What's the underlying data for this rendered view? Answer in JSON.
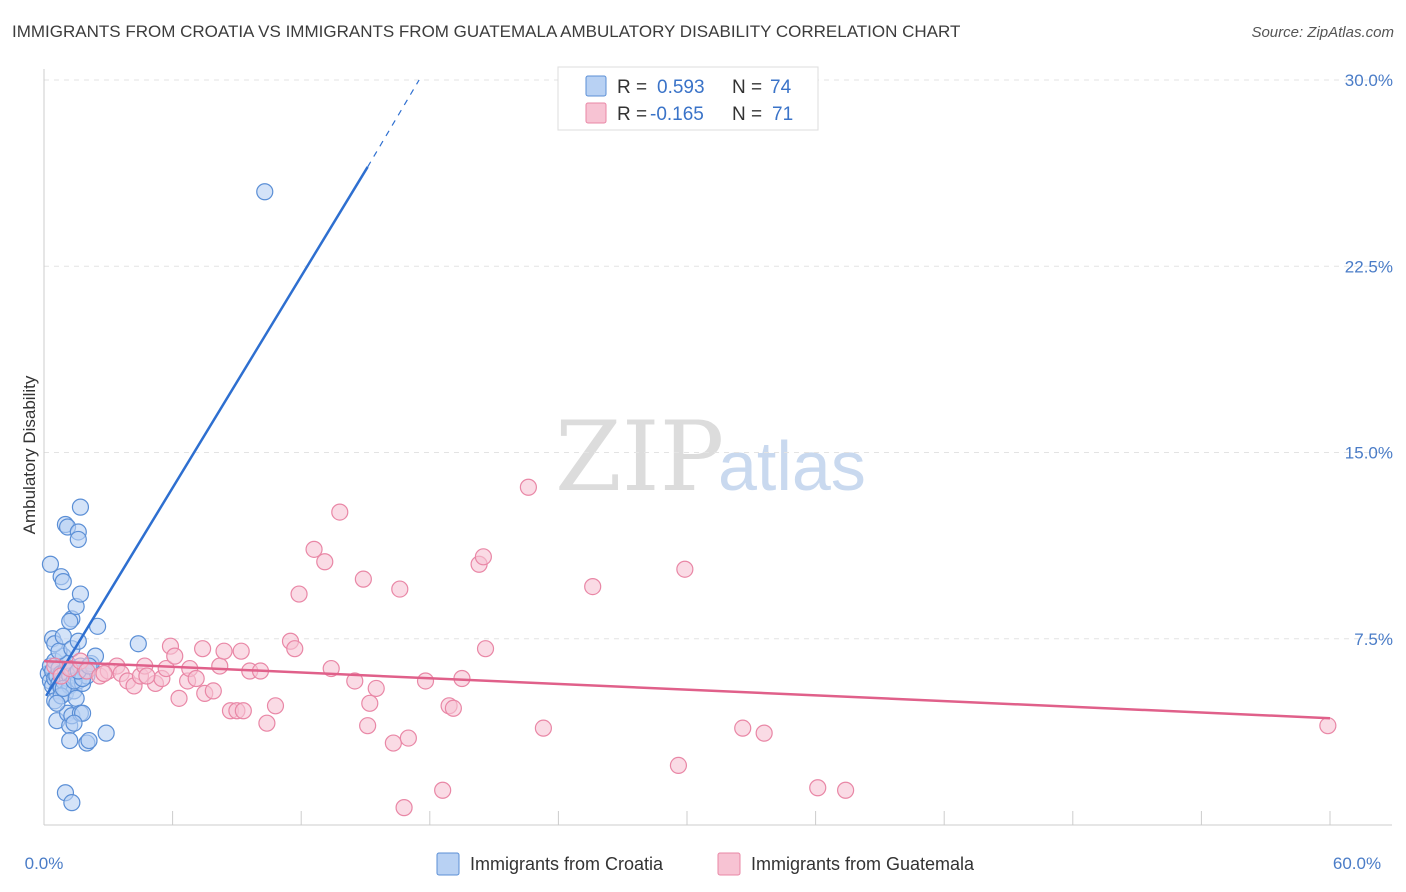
{
  "header": {
    "title": "IMMIGRANTS FROM CROATIA VS IMMIGRANTS FROM GUATEMALA AMBULATORY DISABILITY CORRELATION CHART",
    "source": "Source: ZipAtlas.com"
  },
  "watermark": {
    "zip": "ZIP",
    "atlas": "atlas"
  },
  "legend": {
    "rows": [
      {
        "r_label": "R =",
        "r_value": "0.593",
        "n_label": "N =",
        "n_value": "74"
      },
      {
        "r_label": "R =",
        "r_value": "-0.165",
        "n_label": "N =",
        "n_value": "71"
      }
    ]
  },
  "colors": {
    "croatia_fill": "#b8d1f3",
    "croatia_stroke": "#5b8fd6",
    "croatia_line": "#2e6fd0",
    "guatemala_fill": "#f7c3d3",
    "guatemala_stroke": "#e987a6",
    "guatemala_line": "#e0608a",
    "tick_text": "#4a7cc7"
  },
  "chart_data": {
    "type": "scatter",
    "title": "IMMIGRANTS FROM CROATIA VS IMMIGRANTS FROM GUATEMALA AMBULATORY DISABILITY CORRELATION CHART",
    "xlabel": "",
    "ylabel": "Ambulatory Disability",
    "xlim": [
      0,
      60
    ],
    "ylim": [
      0,
      30
    ],
    "x_tick_labels": [
      "0.0%",
      "60.0%"
    ],
    "y_ticks": [
      7.5,
      15.0,
      22.5,
      30.0
    ],
    "y_tick_labels": [
      "7.5%",
      "15.0%",
      "22.5%",
      "30.0%"
    ],
    "grid": "horizontal dashed",
    "legend_position": "top-center",
    "series": [
      {
        "name": "Immigrants from Croatia",
        "trend": {
          "x": [
            0.1,
            15.1
          ],
          "y": [
            5.2,
            26.5
          ],
          "dashed_to": [
            17.5,
            30.0
          ]
        },
        "points": [
          [
            0.2,
            6.1
          ],
          [
            0.3,
            5.8
          ],
          [
            0.3,
            6.4
          ],
          [
            0.4,
            5.6
          ],
          [
            0.4,
            6.2
          ],
          [
            0.5,
            5.9
          ],
          [
            0.5,
            6.6
          ],
          [
            0.6,
            5.4
          ],
          [
            0.6,
            6.0
          ],
          [
            0.7,
            6.3
          ],
          [
            0.7,
            5.7
          ],
          [
            0.8,
            6.1
          ],
          [
            0.8,
            5.5
          ],
          [
            0.9,
            6.8
          ],
          [
            0.9,
            5.8
          ],
          [
            1.0,
            6.2
          ],
          [
            1.0,
            5.3
          ],
          [
            1.1,
            6.5
          ],
          [
            1.1,
            5.9
          ],
          [
            1.2,
            6.0
          ],
          [
            1.2,
            5.6
          ],
          [
            1.3,
            6.3
          ],
          [
            1.4,
            5.4
          ],
          [
            1.5,
            6.1
          ],
          [
            1.6,
            5.8
          ],
          [
            1.7,
            6.4
          ],
          [
            1.8,
            5.7
          ],
          [
            1.9,
            6.2
          ],
          [
            2.0,
            6.0
          ],
          [
            2.2,
            6.5
          ],
          [
            0.4,
            7.5
          ],
          [
            0.5,
            7.3
          ],
          [
            0.7,
            7.0
          ],
          [
            0.9,
            7.6
          ],
          [
            1.3,
            7.1
          ],
          [
            1.6,
            7.4
          ],
          [
            2.4,
            6.8
          ],
          [
            0.3,
            10.5
          ],
          [
            0.8,
            10.0
          ],
          [
            0.9,
            9.8
          ],
          [
            1.0,
            12.1
          ],
          [
            1.1,
            12.0
          ],
          [
            1.3,
            8.3
          ],
          [
            1.2,
            8.2
          ],
          [
            1.5,
            8.8
          ],
          [
            1.7,
            9.3
          ],
          [
            1.6,
            11.8
          ],
          [
            1.6,
            11.5
          ],
          [
            1.7,
            12.8
          ],
          [
            2.5,
            8.0
          ],
          [
            0.5,
            5.0
          ],
          [
            0.6,
            4.2
          ],
          [
            0.8,
            5.2
          ],
          [
            1.1,
            4.5
          ],
          [
            1.2,
            4.0
          ],
          [
            1.3,
            4.4
          ],
          [
            1.5,
            5.1
          ],
          [
            1.7,
            4.5
          ],
          [
            1.8,
            4.5
          ],
          [
            1.2,
            3.4
          ],
          [
            2.0,
            3.3
          ],
          [
            2.1,
            3.4
          ],
          [
            2.9,
            3.7
          ],
          [
            0.9,
            5.5
          ],
          [
            1.4,
            5.8
          ],
          [
            1.8,
            5.9
          ],
          [
            1.0,
            1.3
          ],
          [
            1.3,
            0.9
          ],
          [
            4.4,
            7.3
          ],
          [
            10.3,
            25.5
          ],
          [
            0.6,
            4.9
          ],
          [
            1.6,
            6.2
          ],
          [
            2.1,
            6.4
          ],
          [
            1.4,
            4.1
          ]
        ]
      },
      {
        "name": "Immigrants from Guatemala",
        "trend": {
          "x": [
            0.0,
            60.0
          ],
          "y": [
            6.6,
            4.3
          ]
        },
        "points": [
          [
            0.5,
            6.4
          ],
          [
            0.8,
            6.0
          ],
          [
            1.2,
            6.3
          ],
          [
            1.7,
            6.6
          ],
          [
            2.0,
            6.2
          ],
          [
            2.6,
            6.0
          ],
          [
            3.0,
            6.2
          ],
          [
            3.4,
            6.4
          ],
          [
            3.6,
            6.1
          ],
          [
            3.9,
            5.8
          ],
          [
            4.2,
            5.6
          ],
          [
            4.5,
            6.0
          ],
          [
            4.7,
            6.4
          ],
          [
            5.2,
            5.7
          ],
          [
            5.5,
            5.9
          ],
          [
            5.7,
            6.3
          ],
          [
            5.9,
            7.2
          ],
          [
            6.1,
            6.8
          ],
          [
            6.3,
            5.1
          ],
          [
            6.7,
            5.8
          ],
          [
            6.8,
            6.3
          ],
          [
            7.1,
            5.9
          ],
          [
            7.4,
            7.1
          ],
          [
            7.5,
            5.3
          ],
          [
            7.9,
            5.4
          ],
          [
            8.2,
            6.4
          ],
          [
            8.4,
            7.0
          ],
          [
            8.7,
            4.6
          ],
          [
            9.0,
            4.6
          ],
          [
            9.2,
            7.0
          ],
          [
            9.3,
            4.6
          ],
          [
            9.6,
            6.2
          ],
          [
            10.1,
            6.2
          ],
          [
            10.4,
            4.1
          ],
          [
            11.5,
            7.4
          ],
          [
            11.7,
            7.1
          ],
          [
            11.9,
            9.3
          ],
          [
            13.1,
            10.6
          ],
          [
            13.8,
            12.6
          ],
          [
            14.5,
            5.8
          ],
          [
            14.9,
            9.9
          ],
          [
            15.2,
            4.9
          ],
          [
            15.5,
            5.5
          ],
          [
            16.3,
            3.3
          ],
          [
            16.6,
            9.5
          ],
          [
            16.8,
            0.7
          ],
          [
            17.0,
            3.5
          ],
          [
            17.8,
            5.8
          ],
          [
            18.6,
            1.4
          ],
          [
            18.9,
            4.8
          ],
          [
            19.1,
            4.7
          ],
          [
            19.5,
            5.9
          ],
          [
            20.3,
            10.5
          ],
          [
            20.5,
            10.8
          ],
          [
            20.6,
            7.1
          ],
          [
            22.6,
            13.6
          ],
          [
            23.3,
            3.9
          ],
          [
            25.6,
            9.6
          ],
          [
            29.6,
            2.4
          ],
          [
            29.9,
            10.3
          ],
          [
            32.6,
            3.9
          ],
          [
            33.6,
            3.7
          ],
          [
            36.1,
            1.5
          ],
          [
            37.4,
            1.4
          ],
          [
            59.9,
            4.0
          ],
          [
            12.6,
            11.1
          ],
          [
            10.8,
            4.8
          ],
          [
            15.1,
            4.0
          ],
          [
            13.4,
            6.3
          ],
          [
            4.8,
            6.0
          ],
          [
            2.8,
            6.1
          ]
        ]
      }
    ]
  },
  "bottom_legend": {
    "items": [
      {
        "label": "Immigrants from Croatia"
      },
      {
        "label": "Immigrants from Guatemala"
      }
    ]
  }
}
